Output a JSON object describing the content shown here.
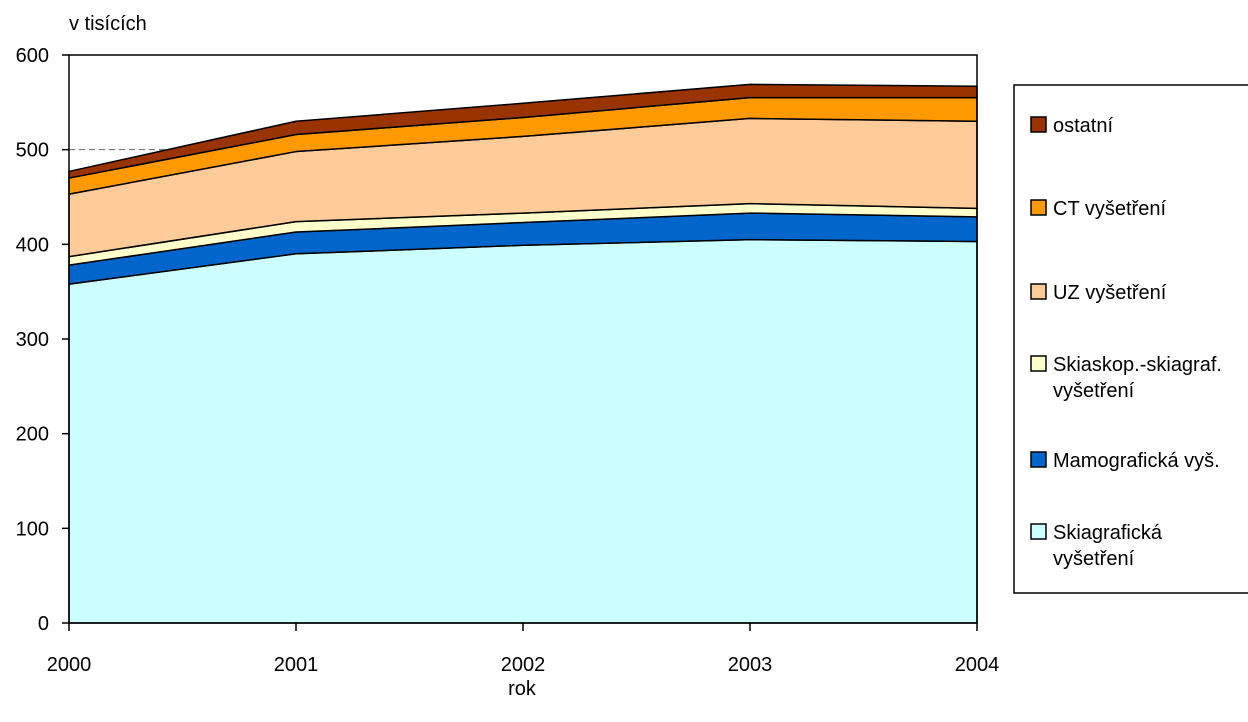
{
  "chart_data": {
    "type": "area",
    "stacked": true,
    "ylabel": "v tisících",
    "xlabel": "rok",
    "x": [
      "2000",
      "2001",
      "2002",
      "2003",
      "2004"
    ],
    "ylim": [
      0,
      600
    ],
    "yticks": [
      0,
      100,
      200,
      300,
      400,
      500,
      600
    ],
    "reference_line": 500,
    "series": [
      {
        "name": "Skiagrafická vyšetření",
        "legend_lines": [
          "Skiagrafická",
          "vyšetření"
        ],
        "color": "#CCFFFF",
        "values": [
          358,
          390,
          399,
          405,
          403
        ]
      },
      {
        "name": "Mamografická vyš.",
        "legend_lines": [
          "Mamografická vyš."
        ],
        "color": "#0066CC",
        "values": [
          20,
          23,
          24,
          28,
          26
        ]
      },
      {
        "name": "Skiaskop.-skiagraf. vyšetření",
        "legend_lines": [
          "Skiaskop.-skiagraf.",
          "vyšetření"
        ],
        "color": "#FFFFCC",
        "values": [
          9,
          11,
          10,
          10,
          9
        ]
      },
      {
        "name": "UZ vyšetření",
        "legend_lines": [
          "UZ vyšetření"
        ],
        "color": "#FFCC99",
        "values": [
          66,
          74,
          81,
          90,
          92
        ]
      },
      {
        "name": "CT vyšetření",
        "legend_lines": [
          "CT vyšetření"
        ],
        "color": "#FF9900",
        "values": [
          17,
          18,
          20,
          22,
          25
        ]
      },
      {
        "name": "ostatní",
        "legend_lines": [
          "ostatní"
        ],
        "color": "#993300",
        "values": [
          7,
          14,
          15,
          14,
          12
        ]
      }
    ],
    "legend": {
      "position": "right",
      "order": [
        "ostatní",
        "CT vyšetření",
        "UZ vyšetření",
        "Skiaskop.-skiagraf. vyšetření",
        "Mamografická vyš.",
        "Skiagrafická vyšetření"
      ]
    },
    "grid": false
  }
}
